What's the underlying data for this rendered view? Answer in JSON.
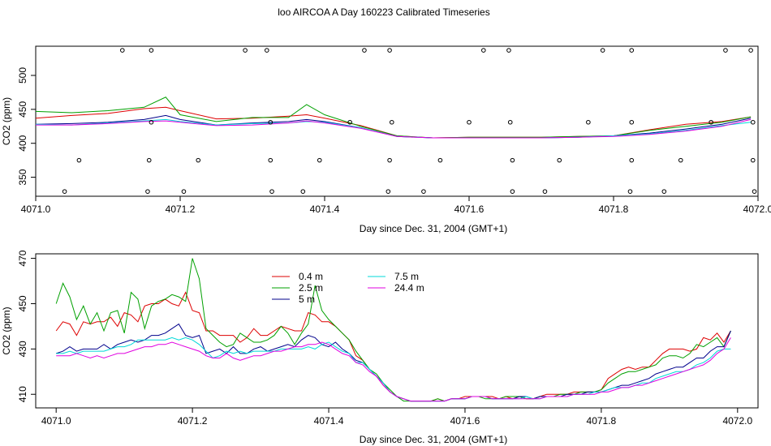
{
  "title": "loo AIRCOA A  Day 160223  Calibrated Timeseries",
  "colors": {
    "0.4 m": "#dd0000",
    "2.5 m": "#00a000",
    "5 m": "#00008b",
    "7.5 m": "#00d8d8",
    "24.4 m": "#e000e0",
    "axis": "#000000",
    "background": "#ffffff"
  },
  "chart_data": [
    {
      "type": "line",
      "xlabel": "Day since Dec. 31, 2004 (GMT+1)",
      "ylabel": "CO2 (ppm)",
      "xlim": [
        4071.0,
        4072.0
      ],
      "ylim": [
        322,
        543
      ],
      "xticks": [
        "4071.0",
        "4071.2",
        "4071.4",
        "4071.6",
        "4071.8",
        "4072.0"
      ],
      "yticks": [
        "350",
        "400",
        "450",
        "500"
      ],
      "grid": false,
      "legend": "none",
      "x": [
        4071.0,
        4071.05,
        4071.1,
        4071.15,
        4071.18,
        4071.2,
        4071.25,
        4071.3,
        4071.35,
        4071.375,
        4071.4,
        4071.45,
        4071.5,
        4071.55,
        4071.6,
        4071.65,
        4071.7,
        4071.75,
        4071.8,
        4071.85,
        4071.9,
        4071.95,
        4071.99
      ],
      "series": [
        {
          "name": "0.4 m",
          "values": [
            437,
            441,
            444,
            451,
            453,
            448,
            436,
            437,
            440,
            442,
            437,
            426,
            411,
            408,
            409,
            409,
            409,
            410,
            411,
            420,
            428,
            432,
            439
          ]
        },
        {
          "name": "2.5 m",
          "values": [
            447,
            445,
            448,
            453,
            468,
            442,
            432,
            438,
            438,
            457,
            442,
            425,
            411,
            408,
            409,
            409,
            409,
            410,
            411,
            419,
            425,
            431,
            439
          ]
        },
        {
          "name": "5 m",
          "values": [
            428,
            429,
            431,
            435,
            441,
            435,
            427,
            430,
            432,
            435,
            432,
            423,
            410,
            408,
            408,
            408,
            408,
            409,
            411,
            415,
            421,
            428,
            437
          ]
        },
        {
          "name": "7.5 m",
          "values": [
            428,
            427,
            430,
            433,
            435,
            432,
            427,
            429,
            430,
            432,
            431,
            423,
            410,
            408,
            408,
            408,
            408,
            409,
            411,
            414,
            419,
            426,
            431
          ]
        },
        {
          "name": "24.4 m",
          "values": [
            427,
            427,
            429,
            432,
            433,
            431,
            426,
            427,
            430,
            433,
            430,
            422,
            410,
            408,
            408,
            408,
            408,
            409,
            410,
            413,
            418,
            425,
            435
          ]
        }
      ],
      "markers": {
        "x": [
          4071.12,
          4071.16,
          4071.29,
          4071.32,
          4071.455,
          4071.49,
          4071.62,
          4071.655,
          4071.785,
          4071.825,
          4071.955,
          4071.99,
          4071.16,
          4071.325,
          4071.435,
          4071.493,
          4071.6,
          4071.657,
          4071.765,
          4071.825,
          4071.935,
          4071.993,
          4071.06,
          4071.157,
          4071.225,
          4071.325,
          4071.393,
          4071.49,
          4071.56,
          4071.66,
          4071.725,
          4071.825,
          4071.893,
          4071.993,
          4071.04,
          4071.155,
          4071.205,
          4071.327,
          4071.37,
          4071.488,
          4071.537,
          4071.66,
          4071.705,
          4071.823,
          4071.87,
          4071.995
        ],
        "y": [
          537,
          537,
          537,
          537,
          537,
          537,
          537,
          537,
          537,
          537,
          537,
          537,
          431,
          431,
          431,
          431,
          431,
          431,
          431,
          431,
          431,
          431,
          375,
          375,
          375,
          375,
          375,
          375,
          375,
          375,
          375,
          375,
          375,
          375,
          329,
          329,
          329,
          329,
          329,
          329,
          329,
          329,
          329,
          329,
          329,
          329
        ]
      }
    },
    {
      "type": "line",
      "xlabel": "Day since Dec. 31, 2004 (GMT+1)",
      "ylabel": "CO2 (ppm)",
      "xlim": [
        4070.97,
        4072.03
      ],
      "ylim": [
        404,
        472
      ],
      "xticks": [
        "4071.0",
        "4071.2",
        "4071.4",
        "4071.6",
        "4071.8",
        "4072.0"
      ],
      "yticks": [
        "410",
        "430",
        "450",
        "470"
      ],
      "grid": false,
      "legend": "top-center",
      "x": [
        4071.0,
        4071.01,
        4071.02,
        4071.03,
        4071.04,
        4071.05,
        4071.06,
        4071.07,
        4071.08,
        4071.09,
        4071.1,
        4071.11,
        4071.12,
        4071.13,
        4071.14,
        4071.15,
        4071.16,
        4071.17,
        4071.18,
        4071.19,
        4071.2,
        4071.21,
        4071.22,
        4071.23,
        4071.24,
        4071.25,
        4071.26,
        4071.27,
        4071.28,
        4071.29,
        4071.3,
        4071.31,
        4071.32,
        4071.33,
        4071.34,
        4071.35,
        4071.36,
        4071.37,
        4071.38,
        4071.39,
        4071.4,
        4071.41,
        4071.42,
        4071.43,
        4071.44,
        4071.45,
        4071.46,
        4071.47,
        4071.48,
        4071.49,
        4071.5,
        4071.51,
        4071.52,
        4071.53,
        4071.54,
        4071.55,
        4071.56,
        4071.57,
        4071.58,
        4071.59,
        4071.6,
        4071.61,
        4071.62,
        4071.63,
        4071.64,
        4071.65,
        4071.66,
        4071.67,
        4071.68,
        4071.69,
        4071.7,
        4071.71,
        4071.72,
        4071.73,
        4071.74,
        4071.75,
        4071.76,
        4071.77,
        4071.78,
        4071.79,
        4071.8,
        4071.81,
        4071.82,
        4071.83,
        4071.84,
        4071.85,
        4071.86,
        4071.87,
        4071.88,
        4071.89,
        4071.9,
        4071.91,
        4071.92,
        4071.93,
        4071.94,
        4071.95,
        4071.96,
        4071.97,
        4071.98,
        4071.99
      ],
      "series": [
        {
          "name": "0.4 m",
          "values": [
            438,
            442,
            441,
            436,
            442,
            441,
            442,
            442,
            444,
            440,
            446,
            445,
            442,
            449,
            450,
            450,
            452,
            450,
            449,
            455,
            447,
            446,
            438,
            438,
            436,
            436,
            436,
            433,
            435,
            439,
            436,
            436,
            438,
            440,
            439,
            438,
            438,
            446,
            445,
            442,
            442,
            440,
            437,
            434,
            427,
            425,
            421,
            418,
            414,
            411,
            409,
            408,
            407,
            407,
            407,
            407,
            408,
            407,
            408,
            408,
            409,
            409,
            409,
            409,
            409,
            408,
            409,
            408,
            409,
            408,
            408,
            409,
            410,
            410,
            410,
            410,
            411,
            411,
            411,
            411,
            412,
            417,
            419,
            421,
            422,
            421,
            422,
            422,
            425,
            428,
            430,
            430,
            430,
            429,
            430,
            435,
            434,
            437,
            433,
            438
          ]
        },
        {
          "name": "2.5 m",
          "values": [
            450,
            459,
            453,
            443,
            449,
            441,
            446,
            438,
            446,
            447,
            437,
            455,
            452,
            439,
            449,
            451,
            452,
            454,
            453,
            451,
            470,
            461,
            439,
            436,
            433,
            431,
            432,
            437,
            435,
            433,
            433,
            434,
            436,
            440,
            437,
            432,
            437,
            441,
            458,
            447,
            443,
            440,
            437,
            434,
            429,
            425,
            421,
            419,
            415,
            412,
            409,
            407,
            407,
            407,
            407,
            407,
            408,
            407,
            408,
            408,
            408,
            409,
            409,
            408,
            408,
            408,
            409,
            409,
            409,
            408,
            408,
            409,
            409,
            409,
            410,
            410,
            410,
            411,
            411,
            411,
            412,
            415,
            417,
            419,
            420,
            420,
            421,
            422,
            423,
            426,
            427,
            427,
            426,
            428,
            432,
            431,
            433,
            435,
            431,
            438
          ]
        },
        {
          "name": "5 m",
          "values": [
            428,
            429,
            431,
            429,
            430,
            430,
            430,
            432,
            430,
            432,
            433,
            434,
            433,
            434,
            436,
            436,
            437,
            439,
            441,
            436,
            435,
            436,
            428,
            429,
            430,
            428,
            431,
            428,
            428,
            430,
            431,
            429,
            430,
            431,
            432,
            431,
            434,
            436,
            435,
            432,
            431,
            433,
            430,
            428,
            425,
            424,
            421,
            418,
            415,
            411,
            409,
            408,
            407,
            407,
            407,
            407,
            407,
            407,
            408,
            408,
            408,
            409,
            409,
            409,
            408,
            408,
            408,
            408,
            409,
            409,
            408,
            409,
            409,
            409,
            409,
            410,
            410,
            410,
            411,
            411,
            411,
            412,
            413,
            414,
            414,
            415,
            416,
            417,
            419,
            420,
            421,
            422,
            422,
            424,
            426,
            426,
            429,
            431,
            431,
            438
          ]
        },
        {
          "name": "7.5 m",
          "values": [
            428,
            428,
            429,
            428,
            429,
            429,
            429,
            429,
            430,
            431,
            431,
            432,
            434,
            434,
            434,
            434,
            434,
            435,
            434,
            435,
            434,
            432,
            429,
            426,
            427,
            429,
            428,
            429,
            428,
            429,
            429,
            429,
            429,
            430,
            430,
            430,
            430,
            431,
            430,
            432,
            433,
            431,
            429,
            428,
            424,
            424,
            421,
            418,
            415,
            411,
            409,
            408,
            407,
            407,
            407,
            407,
            407,
            407,
            408,
            408,
            408,
            409,
            409,
            409,
            408,
            408,
            408,
            408,
            408,
            409,
            408,
            408,
            409,
            409,
            409,
            409,
            410,
            410,
            410,
            411,
            411,
            412,
            413,
            413,
            413,
            414,
            415,
            415,
            417,
            418,
            419,
            420,
            420,
            421,
            423,
            424,
            426,
            429,
            430,
            430
          ]
        },
        {
          "name": "24.4 m",
          "values": [
            427,
            427,
            427,
            428,
            427,
            426,
            427,
            426,
            427,
            428,
            428,
            429,
            430,
            431,
            431,
            432,
            432,
            433,
            432,
            431,
            430,
            429,
            427,
            426,
            426,
            428,
            426,
            425,
            426,
            427,
            427,
            428,
            429,
            429,
            430,
            431,
            431,
            432,
            432,
            433,
            432,
            430,
            428,
            427,
            424,
            423,
            420,
            418,
            414,
            411,
            409,
            408,
            407,
            407,
            407,
            407,
            407,
            407,
            408,
            408,
            408,
            409,
            409,
            409,
            408,
            408,
            408,
            408,
            408,
            408,
            408,
            408,
            409,
            409,
            409,
            409,
            410,
            410,
            410,
            410,
            411,
            411,
            412,
            413,
            413,
            414,
            414,
            415,
            416,
            417,
            418,
            419,
            420,
            421,
            422,
            423,
            425,
            428,
            430,
            435
          ]
        }
      ]
    }
  ]
}
